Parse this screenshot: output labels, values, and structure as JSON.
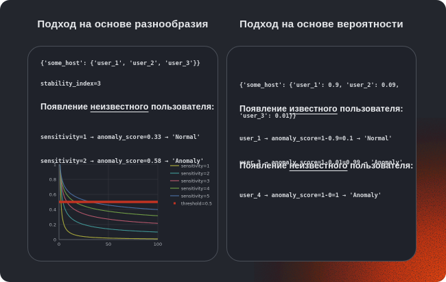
{
  "slide": {
    "bg_color": "#23262d",
    "card_bg_color": "#1f222a",
    "card_border_color": "#4a4f58",
    "corner_glow_color": "#d93a10"
  },
  "left_panel": {
    "title": "Подход на основе разнообразия",
    "code_host_set": "{'some_host': {'user_1', 'user_2', 'user_3'}}",
    "code_stability": "stability_index=3",
    "unknown_section": {
      "heading_prefix": "Появление ",
      "heading_word": "неизвестного",
      "heading_suffix": " пользователя:",
      "lines": [
        "sensitivity=1 → anomaly_score=0.33 → 'Normal'",
        "sensitivity=2 → anomaly_score=0.58 → 'Anomaly'"
      ]
    }
  },
  "right_panel": {
    "title": "Подход на основе вероятности",
    "code_probability_lines": [
      "{'some_host': {'user_1': 0.9, 'user_2': 0.09,",
      "'user_3': 0.01}}"
    ],
    "known_section": {
      "heading_prefix": "Появление ",
      "heading_word": "известного",
      "heading_suffix": " пользователя:",
      "lines": [
        "user_1 → anomaly_score=1-0.9=0.1 → 'Normal'",
        "user_3 → anomaly_score=1-0.01=0.99 → 'Anomaly'"
      ]
    },
    "unknown_section": {
      "heading_prefix": "Появление ",
      "heading_word": "неизвестного",
      "heading_suffix": " пользователя:",
      "lines": [
        "user_4 → anomaly_score=1-0=1 → 'Anomaly'"
      ]
    }
  },
  "chart_data": {
    "type": "line",
    "title": "",
    "xlabel": "",
    "ylabel": "",
    "xlim": [
      0,
      100
    ],
    "ylim": [
      0,
      1
    ],
    "x_ticks": [
      0,
      50,
      100
    ],
    "y_ticks": [
      0,
      0.2,
      0.4,
      0.6,
      0.8,
      1
    ],
    "grid": true,
    "legend_position": "right",
    "formula": "anomaly_score(x) = x^(-1/sensitivity) for x in 1..100",
    "series": [
      {
        "name": "sensitivity=1",
        "sensitivity": 1,
        "color": "#a6a63c",
        "y_at_x1": 1.0,
        "y_at_x100": 0.01
      },
      {
        "name": "sensitivity=2",
        "sensitivity": 2,
        "color": "#3f9393",
        "y_at_x1": 1.0,
        "y_at_x100": 0.1
      },
      {
        "name": "sensitivity=3",
        "sensitivity": 3,
        "color": "#b2566a",
        "y_at_x1": 1.0,
        "y_at_x100": 0.22
      },
      {
        "name": "sensitivity=4",
        "sensitivity": 4,
        "color": "#6f9a45",
        "y_at_x1": 1.0,
        "y_at_x100": 0.32
      },
      {
        "name": "sensitivity=5",
        "sensitivity": 5,
        "color": "#4a6d9e",
        "y_at_x1": 1.0,
        "y_at_x100": 0.4
      }
    ],
    "threshold": {
      "name": "threshold=0.5",
      "value": 0.5,
      "color": "#c23322"
    }
  }
}
